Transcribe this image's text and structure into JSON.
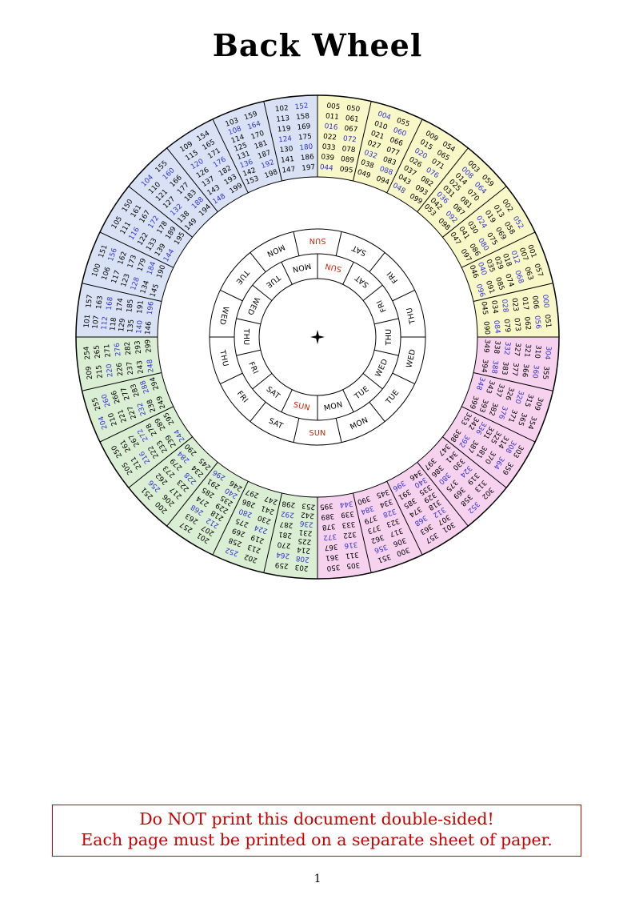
{
  "page": {
    "title": "Back Wheel",
    "page_number": "1"
  },
  "warning": {
    "line1": "Do NOT print this document double-sided!",
    "line2": "Each page must be printed on a separate sheet of paper.",
    "border_color": "#cc0000",
    "text_color": "#cc0000"
  },
  "wheel": {
    "center_marker": "four-pointed-star",
    "colors": {
      "quadrant_century_0": "#f7f7c8",
      "quadrant_century_1": "#d9e2f5",
      "quadrant_century_2": "#d9eed3",
      "quadrant_century_3": "#f6d2ef",
      "leap_year_number": "#3333cc",
      "common_year_number": "#000000",
      "sunday_label": "#cc2200",
      "weekday_label": "#000000",
      "line_color": "#000000"
    },
    "day_ring_outer": [
      "SUN",
      "SAT",
      "FRI",
      "THU",
      "WED",
      "TUE",
      "MON",
      "SUN",
      "SAT",
      "FRI",
      "THU",
      "WED",
      "TUE",
      "MON"
    ],
    "day_ring_inner": [
      "SUN",
      "SAT",
      "FRI",
      "THU",
      "WED",
      "TUE",
      "MON",
      "SUN",
      "SAT",
      "FRI",
      "THU",
      "WED",
      "TUE",
      "MON"
    ],
    "sectors": [
      {
        "century": 0,
        "years": [
          "005",
          "011",
          "016",
          "022",
          "033",
          "039",
          "044",
          "050",
          "061",
          "067",
          "072",
          "078",
          "089",
          "095"
        ]
      },
      {
        "century": 0,
        "years": [
          "004",
          "010",
          "021",
          "027",
          "032",
          "038",
          "049",
          "055",
          "060",
          "066",
          "077",
          "083",
          "088",
          "094"
        ]
      },
      {
        "century": 0,
        "years": [
          "009",
          "015",
          "020",
          "026",
          "037",
          "043",
          "048",
          "054",
          "065",
          "071",
          "076",
          "082",
          "093",
          "099"
        ]
      },
      {
        "century": 0,
        "years": [
          "003",
          "008",
          "014",
          "025",
          "031",
          "036",
          "042",
          "053",
          "059",
          "064",
          "070",
          "081",
          "087",
          "092",
          "098"
        ]
      },
      {
        "century": 0,
        "years": [
          "002",
          "013",
          "019",
          "024",
          "030",
          "041",
          "047",
          "052",
          "058",
          "069",
          "075",
          "080",
          "086",
          "097"
        ]
      },
      {
        "century": 0,
        "years": [
          "001",
          "007",
          "012",
          "018",
          "029",
          "035",
          "040",
          "046",
          "057",
          "063",
          "068",
          "074",
          "085",
          "091",
          "096"
        ]
      },
      {
        "century": 0,
        "years": [
          "000",
          "006",
          "017",
          "023",
          "028",
          "034",
          "045",
          "051",
          "056",
          "062",
          "073",
          "079",
          "084",
          "090"
        ]
      },
      {
        "century": 3,
        "years": [
          "304",
          "310",
          "321",
          "327",
          "332",
          "338",
          "349",
          "355",
          "360",
          "366",
          "377",
          "383",
          "388",
          "394"
        ]
      },
      {
        "century": 3,
        "years": [
          "309",
          "315",
          "320",
          "326",
          "337",
          "343",
          "348",
          "354",
          "365",
          "371",
          "376",
          "382",
          "393",
          "399"
        ]
      },
      {
        "century": 3,
        "years": [
          "303",
          "308",
          "314",
          "325",
          "331",
          "336",
          "342",
          "353",
          "359",
          "364",
          "370",
          "381",
          "387",
          "392",
          "398"
        ]
      },
      {
        "century": 3,
        "years": [
          "302",
          "313",
          "319",
          "324",
          "330",
          "341",
          "347",
          "352",
          "358",
          "369",
          "375",
          "380",
          "386",
          "397"
        ]
      },
      {
        "century": 3,
        "years": [
          "301",
          "307",
          "312",
          "318",
          "329",
          "335",
          "340",
          "346",
          "357",
          "363",
          "368",
          "374",
          "385",
          "391",
          "396"
        ]
      },
      {
        "century": 3,
        "years": [
          "300",
          "306",
          "317",
          "323",
          "328",
          "334",
          "345",
          "351",
          "356",
          "362",
          "373",
          "379",
          "384",
          "390"
        ]
      },
      {
        "century": 3,
        "years": [
          "305",
          "311",
          "316",
          "322",
          "333",
          "339",
          "344",
          "350",
          "361",
          "367",
          "372",
          "378",
          "389",
          "395"
        ]
      },
      {
        "century": 2,
        "years": [
          "203",
          "208",
          "214",
          "225",
          "231",
          "236",
          "242",
          "253",
          "259",
          "264",
          "270",
          "281",
          "287",
          "292",
          "298"
        ]
      },
      {
        "century": 2,
        "years": [
          "202",
          "213",
          "219",
          "224",
          "230",
          "241",
          "247",
          "252",
          "258",
          "269",
          "275",
          "280",
          "286",
          "297"
        ]
      },
      {
        "century": 2,
        "years": [
          "201",
          "207",
          "212",
          "218",
          "229",
          "235",
          "240",
          "246",
          "257",
          "263",
          "268",
          "274",
          "285",
          "291",
          "296"
        ]
      },
      {
        "century": 2,
        "years": [
          "200",
          "206",
          "217",
          "223",
          "228",
          "234",
          "245",
          "251",
          "256",
          "262",
          "273",
          "279",
          "284",
          "290"
        ]
      },
      {
        "century": 2,
        "years": [
          "205",
          "211",
          "216",
          "222",
          "233",
          "239",
          "244",
          "250",
          "261",
          "267",
          "272",
          "278",
          "289",
          "295"
        ]
      },
      {
        "century": 2,
        "years": [
          "204",
          "210",
          "221",
          "227",
          "232",
          "238",
          "249",
          "255",
          "260",
          "266",
          "277",
          "283",
          "288",
          "294"
        ]
      },
      {
        "century": 2,
        "years": [
          "209",
          "215",
          "220",
          "226",
          "237",
          "243",
          "248",
          "254",
          "265",
          "271",
          "276",
          "282",
          "293",
          "299"
        ]
      },
      {
        "century": 1,
        "years": [
          "101",
          "107",
          "112",
          "118",
          "129",
          "135",
          "140",
          "146",
          "157",
          "163",
          "168",
          "174",
          "185",
          "191",
          "196"
        ]
      },
      {
        "century": 1,
        "years": [
          "100",
          "106",
          "117",
          "123",
          "128",
          "134",
          "145",
          "151",
          "156",
          "162",
          "173",
          "179",
          "184",
          "190"
        ]
      },
      {
        "century": 1,
        "years": [
          "105",
          "111",
          "116",
          "122",
          "133",
          "139",
          "144",
          "150",
          "161",
          "167",
          "172",
          "178",
          "189",
          "195"
        ]
      },
      {
        "century": 1,
        "years": [
          "104",
          "110",
          "121",
          "127",
          "132",
          "138",
          "149",
          "155",
          "160",
          "166",
          "177",
          "183",
          "188",
          "194"
        ]
      },
      {
        "century": 1,
        "years": [
          "109",
          "115",
          "120",
          "126",
          "137",
          "143",
          "148",
          "154",
          "165",
          "171",
          "176",
          "182",
          "193",
          "199"
        ]
      },
      {
        "century": 1,
        "years": [
          "103",
          "108",
          "114",
          "125",
          "131",
          "136",
          "142",
          "153",
          "159",
          "164",
          "170",
          "181",
          "187",
          "192",
          "198"
        ]
      },
      {
        "century": 1,
        "years": [
          "102",
          "113",
          "119",
          "124",
          "130",
          "141",
          "147",
          "152",
          "158",
          "169",
          "175",
          "180",
          "186",
          "197"
        ]
      }
    ]
  }
}
